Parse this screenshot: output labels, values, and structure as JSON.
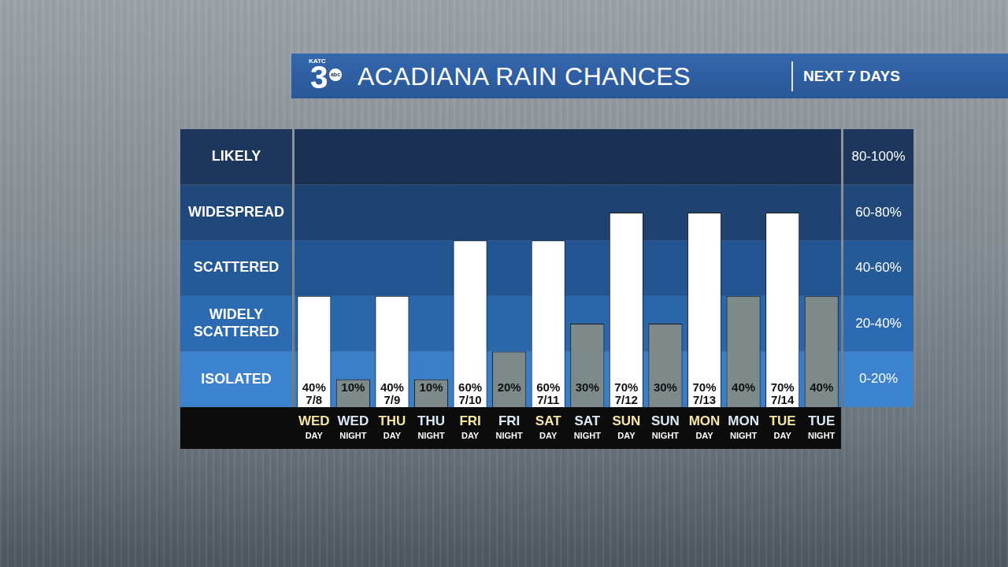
{
  "logo": {
    "station": "KATC",
    "channel": "3",
    "network": "abc"
  },
  "chart_data": {
    "type": "bar",
    "title": "ACADIANA RAIN CHANCES",
    "subtitle": "NEXT 7 DAYS",
    "categories": [
      "WED DAY",
      "WED NIGHT",
      "THU DAY",
      "THU NIGHT",
      "FRI DAY",
      "FRI NIGHT",
      "SAT DAY",
      "SAT NIGHT",
      "SUN DAY",
      "SUN NIGHT",
      "MON DAY",
      "MON NIGHT",
      "TUE DAY",
      "TUE NIGHT"
    ],
    "dates": [
      "7/8",
      null,
      "7/9",
      null,
      "7/10",
      null,
      "7/11",
      null,
      "7/12",
      null,
      "7/13",
      null,
      "7/14",
      null
    ],
    "values": [
      40,
      10,
      40,
      10,
      60,
      20,
      60,
      30,
      70,
      30,
      70,
      40,
      70,
      40
    ],
    "value_labels": [
      "40%",
      "10%",
      "40%",
      "10%",
      "60%",
      "20%",
      "60%",
      "30%",
      "70%",
      "30%",
      "70%",
      "40%",
      "70%",
      "40%"
    ],
    "colors": [
      "#ffffff",
      "#7e8a8a",
      "#ffffff",
      "#7e8a8a",
      "#ffffff",
      "#7e8a8a",
      "#ffffff",
      "#7e8a8a",
      "#ffffff",
      "#7e8a8a",
      "#ffffff",
      "#7e8a8a",
      "#ffffff",
      "#7e8a8a"
    ],
    "ylim": [
      0,
      100
    ],
    "yticks": [
      0,
      20,
      40,
      60,
      80,
      100
    ],
    "bands": [
      {
        "label": "LIKELY",
        "range_label": "80-100%",
        "from": 80,
        "to": 100
      },
      {
        "label": "WIDESPREAD",
        "range_label": "60-80%",
        "from": 60,
        "to": 80
      },
      {
        "label": "SCATTERED",
        "range_label": "40-60%",
        "from": 40,
        "to": 60
      },
      {
        "label": "WIDELY SCATTERED",
        "range_label": "20-40%",
        "from": 20,
        "to": 40
      },
      {
        "label": "ISOLATED",
        "range_label": "0-20%",
        "from": 0,
        "to": 20
      }
    ],
    "data_labels": true,
    "tick_labels": "x",
    "grid": false
  }
}
